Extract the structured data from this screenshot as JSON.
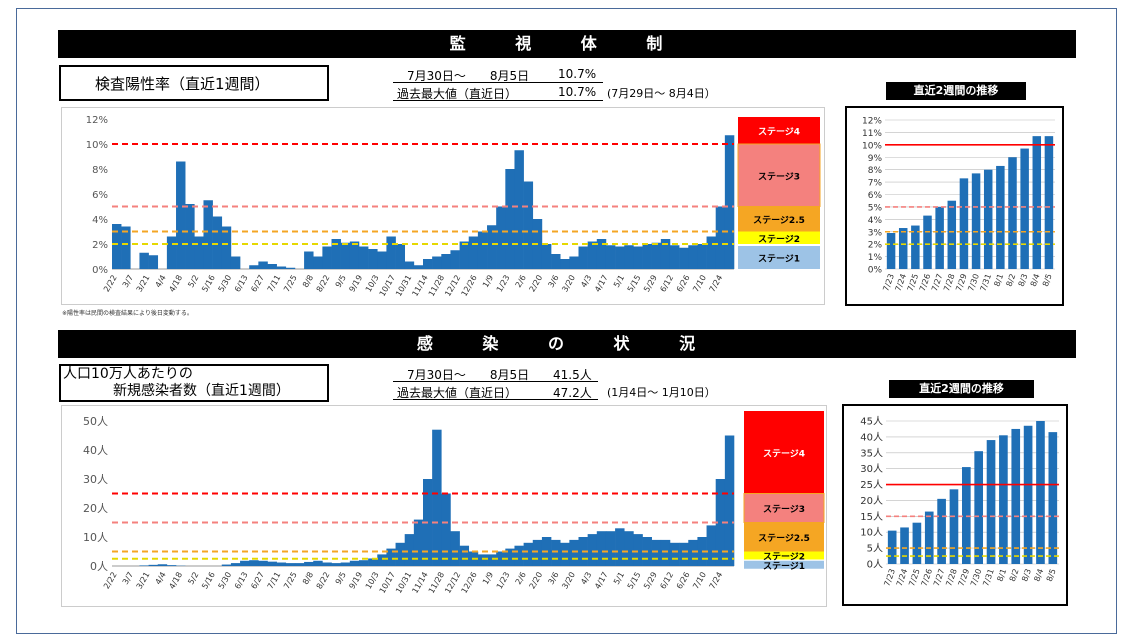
{
  "section1": {
    "banner": "監 視 体 制",
    "box_title": "検査陽性率（直近1週間）",
    "period_label": "7月30日～　　8月5日",
    "current_value": "10.7%",
    "max_label": "過去最大値（直近日）",
    "max_value": "10.7%",
    "max_date": "(7月29日～ 8月4日）",
    "note": "※陽性率は民間の検査結果により後日変動する。",
    "trend_title": "直近2週間の推移"
  },
  "section2": {
    "banner": "感 染 の 状 況",
    "box_title_line1": "人口10万人あたりの",
    "box_title_line2": "新規感染者数（直近1週間）",
    "period_label": "7月30日～　　8月5日",
    "current_value": "41.5人",
    "max_label": "過去最大値（直近日）",
    "max_value": "47.2人",
    "max_date": "(1月4日～ 1月10日）",
    "trend_title": "直近2週間の推移"
  },
  "colors": {
    "bar": "#1f6fb6",
    "stage4": "#ff0000",
    "stage3": "#f4817e",
    "stage25": "#f5a623",
    "stage2": "#ffff00",
    "stage1": "#9dc3e6"
  },
  "chart_data": [
    {
      "type": "area",
      "name": "positivity_long",
      "ylim": [
        0,
        12
      ],
      "yticks": [
        "0%",
        "2%",
        "4%",
        "6%",
        "8%",
        "10%",
        "12%"
      ],
      "x_labels": [
        "2/22",
        "3/7",
        "3/21",
        "4/4",
        "4/18",
        "5/2",
        "5/16",
        "5/30",
        "6/13",
        "6/27",
        "7/11",
        "7/25",
        "8/8",
        "8/22",
        "9/5",
        "9/19",
        "10/3",
        "10/17",
        "10/31",
        "11/14",
        "11/28",
        "12/12",
        "12/26",
        "1/9",
        "1/23",
        "2/6",
        "2/20",
        "3/6",
        "3/20",
        "4/3",
        "4/17",
        "5/1",
        "5/15",
        "5/29",
        "6/12",
        "6/26",
        "7/10",
        "7/24"
      ],
      "values": [
        3.6,
        3.4,
        0,
        1.3,
        1.1,
        0,
        2.6,
        8.6,
        5.2,
        2.6,
        5.5,
        4.2,
        3.4,
        1.0,
        0,
        0.3,
        0.6,
        0.4,
        0.2,
        0.1,
        0,
        1.4,
        1.0,
        1.8,
        2.4,
        2.1,
        2.2,
        1.8,
        1.6,
        1.4,
        2.6,
        2.0,
        0.6,
        0.3,
        0.8,
        1.0,
        1.2,
        1.5,
        2.2,
        2.6,
        3.0,
        3.5,
        5.0,
        8.0,
        9.5,
        7.0,
        4.0,
        2.0,
        1.2,
        0.8,
        1.0,
        1.8,
        2.2,
        2.4,
        1.9,
        1.8,
        1.9,
        1.8,
        2.0,
        2.1,
        2.4,
        1.9,
        1.7,
        1.9,
        2.0,
        2.6,
        5.0,
        10.7
      ],
      "thresholds": [
        {
          "label": "ステージ4",
          "value": 10,
          "color": "#ff0000"
        },
        {
          "label": "ステージ3",
          "value": 5,
          "color": "#f4817e"
        },
        {
          "label": "ステージ2.5",
          "value": 3,
          "color": "#f5a623"
        },
        {
          "label": "ステージ2",
          "value": 2,
          "color": "#ffff00"
        },
        {
          "label": "ステージ1",
          "value": 0,
          "color": "#9dc3e6"
        }
      ]
    },
    {
      "type": "bar",
      "name": "positivity_2weeks",
      "ylim": [
        0,
        12
      ],
      "yticks": [
        "0%",
        "1%",
        "2%",
        "3%",
        "4%",
        "5%",
        "6%",
        "7%",
        "8%",
        "9%",
        "10%",
        "11%",
        "12%"
      ],
      "categories": [
        "7/23",
        "7/24",
        "7/25",
        "7/26",
        "7/27",
        "7/28",
        "7/29",
        "7/30",
        "7/31",
        "8/1",
        "8/2",
        "8/3",
        "8/4",
        "8/5"
      ],
      "values": [
        2.9,
        3.3,
        3.5,
        4.3,
        5.0,
        5.5,
        7.3,
        7.7,
        8.0,
        8.3,
        9.0,
        9.7,
        10.7,
        10.7
      ],
      "thresholds": [
        10,
        5,
        3,
        2
      ]
    },
    {
      "type": "area",
      "name": "cases_long",
      "ylim": [
        0,
        50
      ],
      "yticks": [
        "0人",
        "10人",
        "20人",
        "30人",
        "40人",
        "50人"
      ],
      "x_labels": [
        "2/22",
        "3/7",
        "3/21",
        "4/4",
        "4/18",
        "5/2",
        "5/16",
        "5/30",
        "6/13",
        "6/27",
        "7/11",
        "7/25",
        "8/8",
        "8/22",
        "9/5",
        "9/19",
        "10/3",
        "10/17",
        "10/31",
        "11/14",
        "11/28",
        "12/12",
        "12/26",
        "1/9",
        "1/23",
        "2/6",
        "2/20",
        "3/6",
        "3/20",
        "4/3",
        "4/17",
        "5/1",
        "5/15",
        "5/29",
        "6/12",
        "6/26",
        "7/10",
        "7/24"
      ],
      "values": [
        0,
        0,
        0,
        0.2,
        0.4,
        0.6,
        0.3,
        0.1,
        0,
        0,
        0,
        0,
        0.5,
        1.0,
        1.8,
        2.0,
        1.8,
        1.5,
        1.2,
        1.0,
        1.0,
        1.4,
        1.8,
        1.2,
        1.0,
        1.2,
        1.8,
        2.0,
        2.6,
        4.0,
        6.0,
        8.0,
        11,
        16,
        30,
        47,
        25,
        12,
        7,
        5,
        4,
        4,
        5,
        6,
        7,
        8,
        9,
        10,
        9,
        8,
        9,
        10,
        11,
        12,
        12,
        13,
        12,
        11,
        10,
        9,
        9,
        8,
        8,
        9,
        10,
        14,
        30,
        45
      ],
      "thresholds": [
        {
          "label": "ステージ4",
          "value": 25,
          "color": "#ff0000"
        },
        {
          "label": "ステージ3",
          "value": 15,
          "color": "#f4817e"
        },
        {
          "label": "ステージ2.5",
          "value": 5,
          "color": "#f5a623"
        },
        {
          "label": "ステージ2",
          "value": 2.5,
          "color": "#ffff00"
        },
        {
          "label": "ステージ1",
          "value": 0,
          "color": "#9dc3e6"
        }
      ]
    },
    {
      "type": "bar",
      "name": "cases_2weeks",
      "ylim": [
        0,
        45
      ],
      "yticks": [
        "0人",
        "5人",
        "10人",
        "15人",
        "20人",
        "25人",
        "30人",
        "35人",
        "40人",
        "45人"
      ],
      "categories": [
        "7/23",
        "7/24",
        "7/25",
        "7/26",
        "7/27",
        "7/28",
        "7/29",
        "7/30",
        "7/31",
        "8/1",
        "8/2",
        "8/3",
        "8/4",
        "8/5"
      ],
      "values": [
        10.5,
        11.5,
        13,
        16.5,
        20.5,
        23.5,
        30.5,
        35.5,
        39,
        40.5,
        42.5,
        43.5,
        45,
        41.5
      ],
      "thresholds": [
        25,
        15,
        5,
        2.5
      ]
    }
  ]
}
